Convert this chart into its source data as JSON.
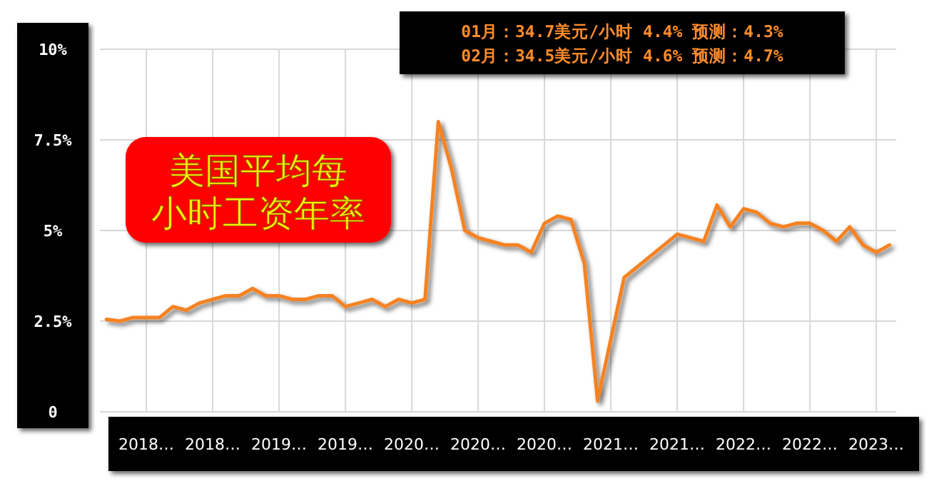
{
  "chart_data": {
    "type": "line",
    "title": "美国平均每小时工资年率",
    "categories": [
      null,
      null,
      null,
      "2018…",
      null,
      null,
      null,
      null,
      "2018…",
      null,
      null,
      null,
      null,
      "2019…",
      null,
      null,
      null,
      null,
      "2019…",
      null,
      null,
      null,
      null,
      "2020…",
      null,
      null,
      null,
      null,
      "2020…",
      null,
      null,
      null,
      null,
      "2020…",
      null,
      null,
      null,
      null,
      "2021…",
      null,
      null,
      null,
      null,
      "2021…",
      null,
      null,
      null,
      null,
      "2022…",
      null,
      null,
      null,
      null,
      "2022…",
      null,
      null,
      null,
      null,
      "2023…",
      null
    ],
    "series": [
      {
        "color": "#f58220",
        "values": [
          2.55,
          2.5,
          2.6,
          2.6,
          2.6,
          2.9,
          2.8,
          3.0,
          3.1,
          3.2,
          3.2,
          3.4,
          3.2,
          3.2,
          3.1,
          3.1,
          3.2,
          3.2,
          2.9,
          3.0,
          3.1,
          2.9,
          3.1,
          3.0,
          3.1,
          8.0,
          6.7,
          5.0,
          4.8,
          4.7,
          4.6,
          4.6,
          4.4,
          5.2,
          5.4,
          5.3,
          4.1,
          0.3,
          2.0,
          3.7,
          4.0,
          4.3,
          4.6,
          4.9,
          4.8,
          4.7,
          5.7,
          5.1,
          5.6,
          5.5,
          5.2,
          5.1,
          5.2,
          5.2,
          5.0,
          4.7,
          5.1,
          4.6,
          4.4,
          4.6
        ]
      }
    ],
    "ylim": [
      0,
      10
    ],
    "yticks": [
      {
        "value": 0,
        "label": "0"
      },
      {
        "value": 2.5,
        "label": "2.5%"
      },
      {
        "value": 5,
        "label": "5%"
      },
      {
        "value": 7.5,
        "label": "7.5%"
      },
      {
        "value": 10,
        "label": "10%"
      }
    ],
    "grid": true,
    "annotations": [
      "01月：34.7美元/小时 4.4% 预测：4.3%",
      "02月：34.5美元/小时 4.6% 预测：4.7%"
    ]
  }
}
